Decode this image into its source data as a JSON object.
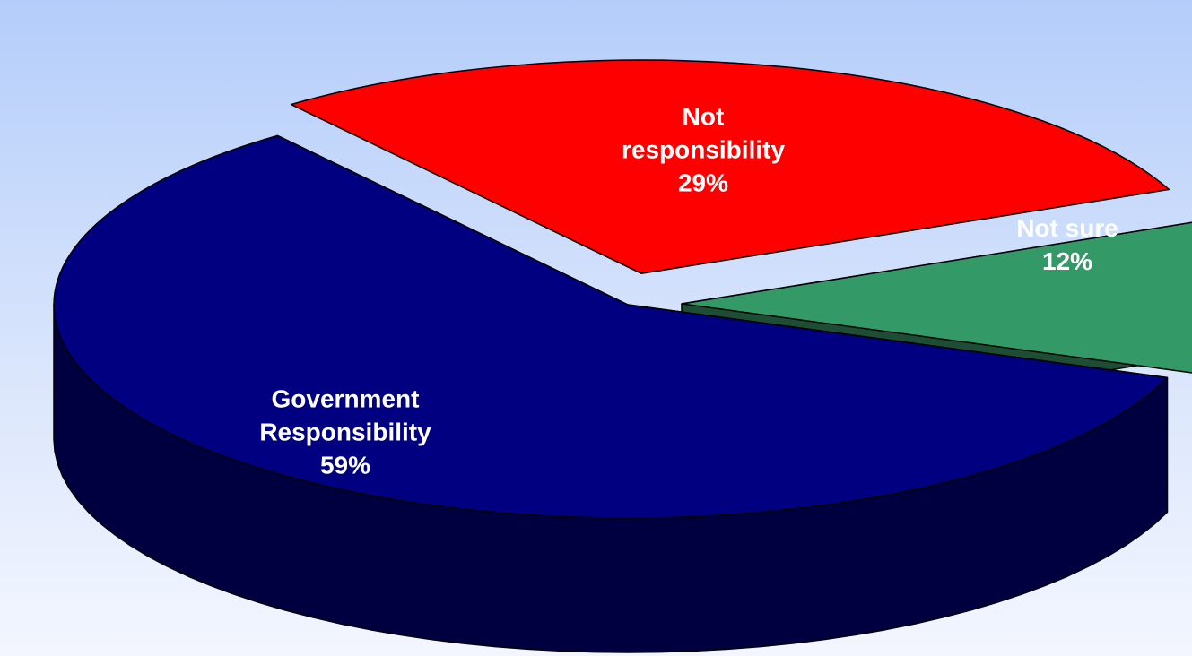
{
  "chart_data": {
    "type": "pie",
    "style": "3d-exploded",
    "legend": "none",
    "slices": [
      {
        "label_lines": [
          "Government",
          "Responsibility"
        ],
        "value": 59,
        "value_label": "59%",
        "top_color": "#000080",
        "side_color": "#000040"
      },
      {
        "label_lines": [
          "Not",
          "responsibility"
        ],
        "value": 29,
        "value_label": "29%",
        "top_color": "#ff0000",
        "side_color": "#800000"
      },
      {
        "label_lines": [
          "Not sure"
        ],
        "value": 12,
        "value_label": "12%",
        "top_color": "#339966",
        "side_color": "#1d4d34"
      }
    ]
  }
}
